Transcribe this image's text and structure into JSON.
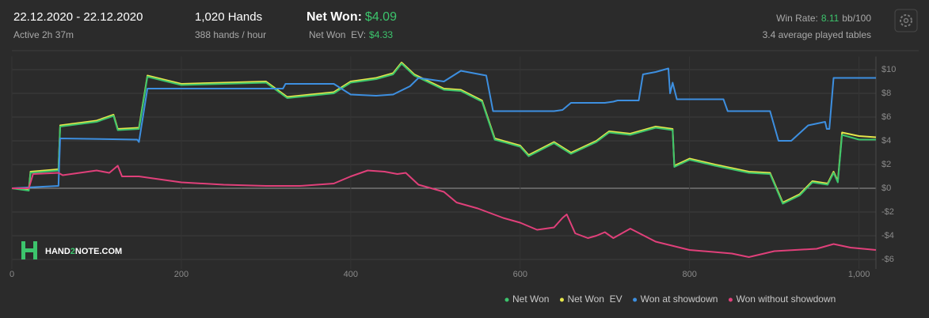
{
  "header": {
    "date_range": "22.12.2020 - 22.12.2020",
    "active": "Active 2h 37m",
    "hands": "1,020 Hands",
    "hands_per_hour": "388 hands / hour",
    "net_won_label": "Net Won:",
    "net_won": "$4.09",
    "net_won_ev_label": "Net Won  EV:",
    "net_won_ev": "$4.33",
    "win_rate_label": "Win Rate:",
    "win_rate": "8.11",
    "win_rate_unit": "bb/100",
    "tables": "3.4 average played tables"
  },
  "logo": {
    "part1": "HAND",
    "part2": "2",
    "part3": "NOTE.COM"
  },
  "chart_data": {
    "type": "line",
    "grid": true,
    "legend": "bottom-right",
    "xlim": [
      0,
      1020
    ],
    "ylim": [
      -6.8,
      11.1
    ],
    "xticks": [
      0,
      200,
      400,
      600,
      800,
      {
        "value": 1000,
        "label": "1,000"
      }
    ],
    "yticks": [
      {
        "value": 10,
        "label": "$10"
      },
      {
        "value": 8,
        "label": "$8"
      },
      {
        "value": 6,
        "label": "$6"
      },
      {
        "value": 4,
        "label": "$4"
      },
      {
        "value": 2,
        "label": "$2"
      },
      {
        "value": 0,
        "label": "$0"
      },
      {
        "value": -2,
        "label": "-$2"
      },
      {
        "value": -4,
        "label": "-$4"
      },
      {
        "value": -6,
        "label": "-$6"
      }
    ],
    "series": [
      {
        "name": "Net Won  EV",
        "color": "#e6e64a",
        "x": [
          0,
          20,
          22,
          55,
          57,
          100,
          120,
          125,
          150,
          160,
          200,
          250,
          300,
          325,
          380,
          400,
          430,
          450,
          460,
          475,
          510,
          530,
          555,
          570,
          600,
          610,
          640,
          660,
          690,
          705,
          730,
          760,
          780,
          782,
          800,
          830,
          870,
          895,
          910,
          930,
          945,
          963,
          970,
          975,
          980,
          1000,
          1020
        ],
        "values": [
          0,
          -0.1,
          1.4,
          1.6,
          5.3,
          5.7,
          6.2,
          5.0,
          5.1,
          9.5,
          8.8,
          8.9,
          9.0,
          7.7,
          8.1,
          9.0,
          9.3,
          9.7,
          10.6,
          9.6,
          8.4,
          8.3,
          7.4,
          4.2,
          3.6,
          2.8,
          3.9,
          3.0,
          4.0,
          4.8,
          4.6,
          5.2,
          5.0,
          1.9,
          2.5,
          2.0,
          1.4,
          1.3,
          -1.2,
          -0.5,
          0.6,
          0.4,
          1.4,
          0.6,
          4.7,
          4.4,
          4.3
        ]
      },
      {
        "name": "Net Won",
        "color": "#3cc46c",
        "x": [
          0,
          20,
          22,
          55,
          57,
          100,
          120,
          125,
          150,
          160,
          200,
          250,
          300,
          325,
          380,
          400,
          430,
          450,
          460,
          475,
          510,
          530,
          555,
          570,
          600,
          610,
          640,
          660,
          690,
          705,
          730,
          760,
          780,
          782,
          800,
          830,
          870,
          895,
          910,
          930,
          945,
          963,
          970,
          975,
          980,
          1000,
          1020
        ],
        "values": [
          0,
          -0.2,
          1.3,
          1.5,
          5.2,
          5.6,
          6.1,
          4.9,
          5.0,
          9.4,
          8.7,
          8.8,
          8.9,
          7.6,
          8.0,
          8.9,
          9.2,
          9.6,
          10.5,
          9.5,
          8.3,
          8.2,
          7.3,
          4.1,
          3.5,
          2.7,
          3.8,
          2.9,
          3.9,
          4.7,
          4.5,
          5.1,
          4.9,
          1.8,
          2.4,
          1.9,
          1.3,
          1.2,
          -1.3,
          -0.6,
          0.5,
          0.3,
          1.3,
          0.5,
          4.5,
          4.1,
          4.1
        ]
      },
      {
        "name": "Won at showdown",
        "color": "#3d8fe0",
        "x": [
          0,
          55,
          57,
          148,
          150,
          160,
          320,
          323,
          380,
          400,
          430,
          450,
          470,
          480,
          510,
          530,
          560,
          568,
          640,
          650,
          660,
          700,
          710,
          715,
          740,
          745,
          760,
          775,
          777,
          780,
          785,
          840,
          845,
          895,
          905,
          920,
          940,
          960,
          962,
          965,
          970,
          1020
        ],
        "values": [
          0,
          0.2,
          4.2,
          4.1,
          3.9,
          8.4,
          8.4,
          8.8,
          8.8,
          7.9,
          7.8,
          7.9,
          8.6,
          9.3,
          9.0,
          9.9,
          9.5,
          6.5,
          6.5,
          6.6,
          7.2,
          7.2,
          7.3,
          7.4,
          7.4,
          9.6,
          9.8,
          10.1,
          8.0,
          8.9,
          7.5,
          7.5,
          6.5,
          6.5,
          4.0,
          4.0,
          5.3,
          5.6,
          5.0,
          5.0,
          9.3,
          9.3
        ]
      },
      {
        "name": "Won without showdown",
        "color": "#e0407a",
        "x": [
          0,
          20,
          25,
          55,
          60,
          100,
          115,
          125,
          130,
          150,
          200,
          250,
          300,
          340,
          380,
          400,
          420,
          440,
          455,
          465,
          480,
          510,
          525,
          550,
          580,
          600,
          620,
          640,
          650,
          655,
          665,
          680,
          690,
          700,
          710,
          730,
          760,
          800,
          850,
          870,
          900,
          950,
          970,
          990,
          1020
        ],
        "values": [
          0,
          0,
          1.2,
          1.3,
          1.1,
          1.5,
          1.3,
          1.9,
          1.0,
          1.0,
          0.5,
          0.3,
          0.2,
          0.2,
          0.4,
          1.0,
          1.5,
          1.4,
          1.2,
          1.3,
          0.3,
          -0.3,
          -1.2,
          -1.7,
          -2.5,
          -2.9,
          -3.5,
          -3.3,
          -2.5,
          -2.2,
          -3.8,
          -4.2,
          -4.0,
          -3.7,
          -4.2,
          -3.4,
          -4.5,
          -5.2,
          -5.5,
          -5.8,
          -5.3,
          -5.1,
          -4.7,
          -5.0,
          -5.2
        ]
      }
    ]
  }
}
